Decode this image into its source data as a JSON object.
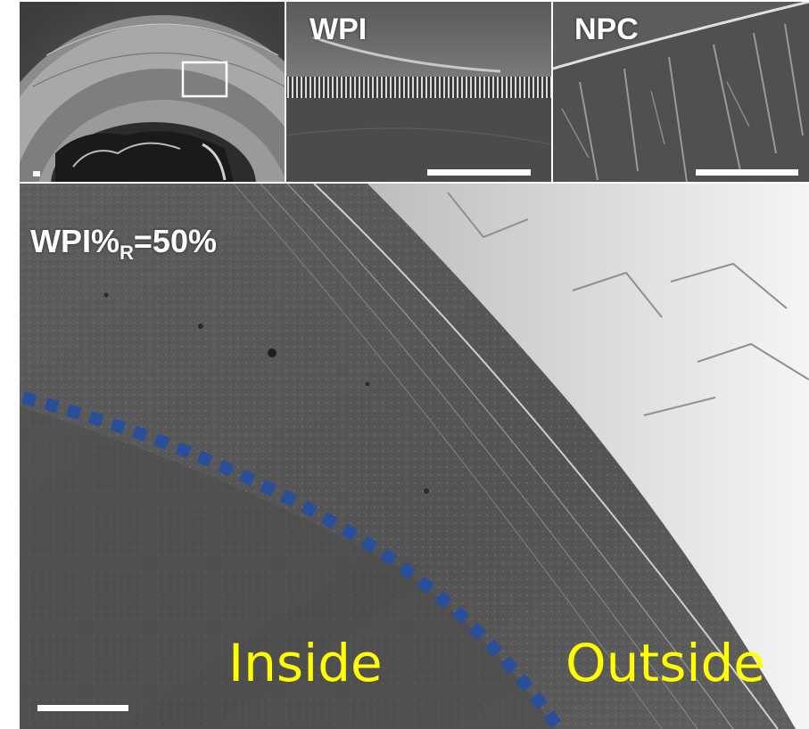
{
  "panels": {
    "overview": {
      "label": ""
    },
    "wpi": {
      "label": "WPI"
    },
    "npc": {
      "label": "NPC"
    },
    "main": {
      "label_main": "WPI%",
      "label_sub": "R",
      "label_tail": "=50%",
      "inside_label": "Inside",
      "outside_label": "Outside"
    }
  },
  "colors": {
    "region_text": "#ffff00",
    "boundary_dots": "#2a4f9a",
    "panel_text": "#ffffff",
    "scalebar": "#ffffff"
  }
}
